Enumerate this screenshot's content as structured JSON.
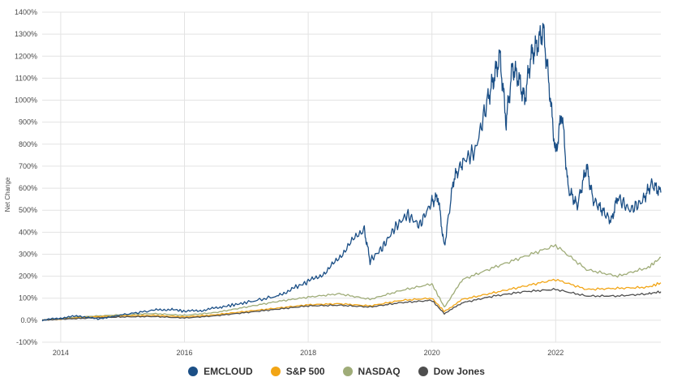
{
  "chart_data": {
    "type": "line",
    "ylabel": "Net Change",
    "xlabel": "",
    "ylim": [
      -100,
      1400
    ],
    "xlim": [
      2013.7,
      2023.7
    ],
    "y_ticks": [
      "1400%",
      "1300%",
      "1200%",
      "1100%",
      "1000%",
      "900%",
      "800%",
      "700%",
      "600%",
      "500%",
      "400%",
      "300%",
      "200%",
      "100%",
      "0.0%",
      "-100%"
    ],
    "y_tick_values": [
      1400,
      1300,
      1200,
      1100,
      1000,
      900,
      800,
      700,
      600,
      500,
      400,
      300,
      200,
      100,
      0,
      -100
    ],
    "x_ticks": [
      "2014",
      "2016",
      "2018",
      "2020",
      "2022"
    ],
    "x_tick_values": [
      2014,
      2016,
      2018,
      2020,
      2022
    ],
    "grid": true,
    "legend_position": "bottom",
    "series": [
      {
        "name": "EMCLOUD",
        "color": "#1b4f86",
        "x": [
          2013.7,
          2014.0,
          2014.3,
          2014.6,
          2015.0,
          2015.5,
          2015.8,
          2016.0,
          2016.3,
          2016.6,
          2017.0,
          2017.5,
          2017.8,
          2018.0,
          2018.3,
          2018.6,
          2018.9,
          2019.0,
          2019.2,
          2019.4,
          2019.6,
          2019.8,
          2020.0,
          2020.1,
          2020.2,
          2020.35,
          2020.5,
          2020.7,
          2020.9,
          2021.0,
          2021.1,
          2021.2,
          2021.3,
          2021.4,
          2021.5,
          2021.6,
          2021.7,
          2021.8,
          2021.9,
          2022.0,
          2022.1,
          2022.2,
          2022.35,
          2022.5,
          2022.6,
          2022.75,
          2022.9,
          2023.0,
          2023.2,
          2023.4,
          2023.55,
          2023.7
        ],
        "y": [
          0,
          10,
          20,
          5,
          25,
          45,
          50,
          40,
          45,
          60,
          80,
          110,
          150,
          175,
          220,
          320,
          420,
          270,
          330,
          420,
          480,
          430,
          540,
          560,
          330,
          640,
          720,
          770,
          1000,
          1100,
          1200,
          900,
          1150,
          1100,
          1000,
          1200,
          1250,
          1320,
          1050,
          750,
          950,
          600,
          520,
          700,
          550,
          500,
          450,
          560,
          500,
          540,
          620,
          580
        ]
      },
      {
        "name": "S&P 500",
        "color": "#f2a515",
        "x": [
          2013.7,
          2014.0,
          2014.5,
          2015.0,
          2015.5,
          2016.0,
          2016.5,
          2017.0,
          2017.5,
          2018.0,
          2018.5,
          2019.0,
          2019.5,
          2020.0,
          2020.2,
          2020.5,
          2021.0,
          2021.5,
          2022.0,
          2022.5,
          2023.0,
          2023.5,
          2023.7
        ],
        "y": [
          0,
          5,
          15,
          20,
          22,
          15,
          25,
          40,
          55,
          70,
          75,
          65,
          90,
          100,
          40,
          95,
          125,
          155,
          185,
          140,
          145,
          150,
          170
        ]
      },
      {
        "name": "NASDAQ",
        "color": "#9fac78",
        "x": [
          2013.7,
          2014.0,
          2014.5,
          2015.0,
          2015.5,
          2016.0,
          2016.5,
          2017.0,
          2017.5,
          2018.0,
          2018.5,
          2019.0,
          2019.5,
          2020.0,
          2020.2,
          2020.5,
          2021.0,
          2021.5,
          2022.0,
          2022.5,
          2023.0,
          2023.5,
          2023.7
        ],
        "y": [
          0,
          8,
          18,
          25,
          30,
          22,
          35,
          60,
          85,
          105,
          120,
          95,
          135,
          165,
          60,
          185,
          240,
          290,
          340,
          230,
          200,
          240,
          285
        ]
      },
      {
        "name": "Dow Jones",
        "color": "#4e4e4e",
        "x": [
          2013.7,
          2014.0,
          2014.5,
          2015.0,
          2015.5,
          2016.0,
          2016.5,
          2017.0,
          2017.5,
          2018.0,
          2018.5,
          2019.0,
          2019.5,
          2020.0,
          2020.2,
          2020.5,
          2021.0,
          2021.5,
          2022.0,
          2022.5,
          2023.0,
          2023.5,
          2023.7
        ],
        "y": [
          0,
          5,
          10,
          15,
          17,
          10,
          20,
          35,
          50,
          65,
          68,
          60,
          80,
          90,
          30,
          80,
          110,
          130,
          140,
          110,
          110,
          120,
          130
        ]
      }
    ]
  }
}
